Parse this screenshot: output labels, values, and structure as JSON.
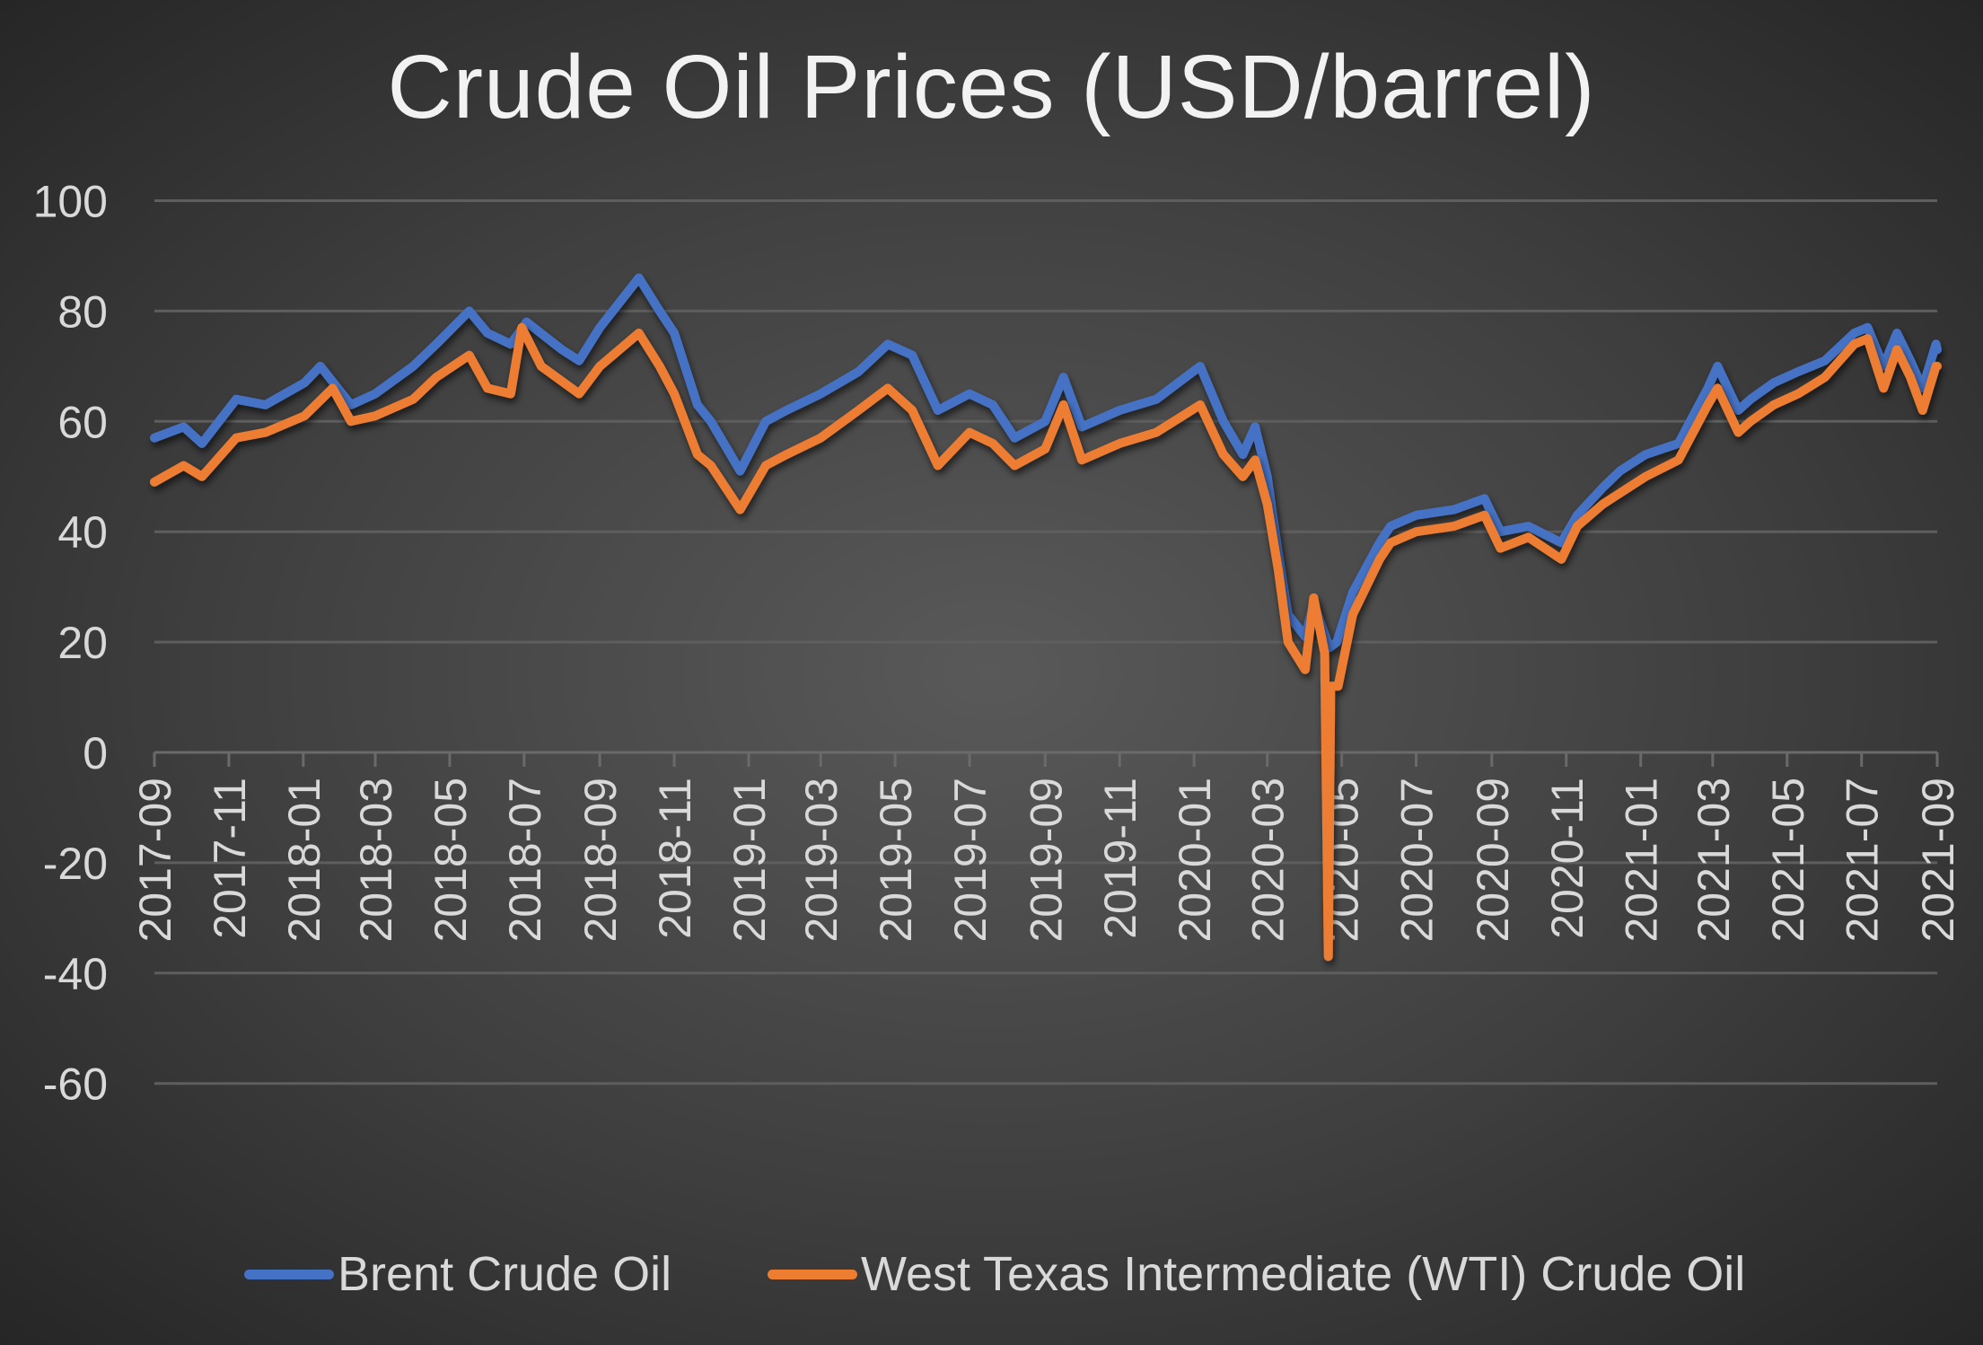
{
  "chart_data": {
    "type": "line",
    "title": "Crude Oil Prices (USD/barrel)",
    "xlabel": "",
    "ylabel": "",
    "ylim": [
      -60,
      100
    ],
    "yticks": [
      100,
      80,
      60,
      40,
      20,
      0,
      -20,
      -40,
      -60
    ],
    "xlim": [
      "2017-09-01",
      "2021-09-01"
    ],
    "xticks": [
      "2017-09",
      "2017-11",
      "2018-01",
      "2018-03",
      "2018-05",
      "2018-07",
      "2018-09",
      "2018-11",
      "2019-01",
      "2019-03",
      "2019-05",
      "2019-07",
      "2019-09",
      "2019-11",
      "2020-01",
      "2020-03",
      "2020-05",
      "2020-07",
      "2020-09",
      "2020-11",
      "2021-01",
      "2021-03",
      "2021-05",
      "2021-07",
      "2021-09"
    ],
    "grid": true,
    "legend": "bottom",
    "series": [
      {
        "name": "Brent Crude Oil",
        "color": "#4472c4",
        "points": [
          [
            "2017-09-01",
            57
          ],
          [
            "2017-09-25",
            59
          ],
          [
            "2017-10-10",
            56
          ],
          [
            "2017-11-07",
            64
          ],
          [
            "2017-12-01",
            63
          ],
          [
            "2018-01-02",
            67
          ],
          [
            "2018-01-15",
            70
          ],
          [
            "2018-02-09",
            63
          ],
          [
            "2018-03-01",
            65
          ],
          [
            "2018-04-01",
            70
          ],
          [
            "2018-04-20",
            74
          ],
          [
            "2018-05-17",
            80
          ],
          [
            "2018-06-01",
            76
          ],
          [
            "2018-06-20",
            74
          ],
          [
            "2018-07-03",
            78
          ],
          [
            "2018-08-01",
            73
          ],
          [
            "2018-08-15",
            71
          ],
          [
            "2018-09-01",
            77
          ],
          [
            "2018-10-03",
            86
          ],
          [
            "2018-10-20",
            80
          ],
          [
            "2018-11-01",
            76
          ],
          [
            "2018-11-20",
            63
          ],
          [
            "2018-12-01",
            60
          ],
          [
            "2018-12-25",
            51
          ],
          [
            "2019-01-15",
            60
          ],
          [
            "2019-02-01",
            62
          ],
          [
            "2019-03-01",
            65
          ],
          [
            "2019-04-01",
            69
          ],
          [
            "2019-04-25",
            74
          ],
          [
            "2019-05-15",
            72
          ],
          [
            "2019-06-05",
            62
          ],
          [
            "2019-07-01",
            65
          ],
          [
            "2019-07-20",
            63
          ],
          [
            "2019-08-07",
            57
          ],
          [
            "2019-09-01",
            60
          ],
          [
            "2019-09-16",
            68
          ],
          [
            "2019-10-01",
            59
          ],
          [
            "2019-11-01",
            62
          ],
          [
            "2019-12-01",
            64
          ],
          [
            "2020-01-06",
            70
          ],
          [
            "2020-01-25",
            60
          ],
          [
            "2020-02-10",
            54
          ],
          [
            "2020-02-20",
            59
          ],
          [
            "2020-03-01",
            50
          ],
          [
            "2020-03-10",
            36
          ],
          [
            "2020-03-18",
            25
          ],
          [
            "2020-04-01",
            21
          ],
          [
            "2020-04-08",
            27
          ],
          [
            "2020-04-21",
            19
          ],
          [
            "2020-04-27",
            20
          ],
          [
            "2020-05-10",
            29
          ],
          [
            "2020-06-01",
            38
          ],
          [
            "2020-06-10",
            41
          ],
          [
            "2020-07-01",
            43
          ],
          [
            "2020-08-01",
            44
          ],
          [
            "2020-08-26",
            46
          ],
          [
            "2020-09-08",
            40
          ],
          [
            "2020-10-01",
            41
          ],
          [
            "2020-10-28",
            38
          ],
          [
            "2020-11-10",
            43
          ],
          [
            "2020-12-01",
            48
          ],
          [
            "2020-12-15",
            51
          ],
          [
            "2021-01-05",
            54
          ],
          [
            "2021-02-01",
            56
          ],
          [
            "2021-02-25",
            66
          ],
          [
            "2021-03-05",
            70
          ],
          [
            "2021-03-22",
            62
          ],
          [
            "2021-04-01",
            64
          ],
          [
            "2021-04-20",
            67
          ],
          [
            "2021-05-10",
            69
          ],
          [
            "2021-06-01",
            71
          ],
          [
            "2021-06-25",
            76
          ],
          [
            "2021-07-06",
            77
          ],
          [
            "2021-07-19",
            70
          ],
          [
            "2021-07-30",
            76
          ],
          [
            "2021-08-10",
            71
          ],
          [
            "2021-08-20",
            66
          ],
          [
            "2021-08-31",
            74
          ],
          [
            "2021-09-01",
            73
          ]
        ]
      },
      {
        "name": "West Texas Intermediate (WTI) Crude Oil",
        "color": "#ed7d31",
        "points": [
          [
            "2017-09-01",
            49
          ],
          [
            "2017-09-25",
            52
          ],
          [
            "2017-10-10",
            50
          ],
          [
            "2017-11-07",
            57
          ],
          [
            "2017-12-01",
            58
          ],
          [
            "2018-01-02",
            61
          ],
          [
            "2018-01-25",
            66
          ],
          [
            "2018-02-09",
            60
          ],
          [
            "2018-03-01",
            61
          ],
          [
            "2018-04-01",
            64
          ],
          [
            "2018-04-20",
            68
          ],
          [
            "2018-05-17",
            72
          ],
          [
            "2018-06-01",
            66
          ],
          [
            "2018-06-20",
            65
          ],
          [
            "2018-06-29",
            77
          ],
          [
            "2018-07-15",
            70
          ],
          [
            "2018-08-15",
            65
          ],
          [
            "2018-09-01",
            70
          ],
          [
            "2018-10-03",
            76
          ],
          [
            "2018-10-20",
            70
          ],
          [
            "2018-11-01",
            65
          ],
          [
            "2018-11-20",
            54
          ],
          [
            "2018-12-01",
            52
          ],
          [
            "2018-12-25",
            44
          ],
          [
            "2019-01-15",
            52
          ],
          [
            "2019-02-01",
            54
          ],
          [
            "2019-03-01",
            57
          ],
          [
            "2019-04-01",
            62
          ],
          [
            "2019-04-25",
            66
          ],
          [
            "2019-05-15",
            62
          ],
          [
            "2019-06-05",
            52
          ],
          [
            "2019-07-01",
            58
          ],
          [
            "2019-07-20",
            56
          ],
          [
            "2019-08-07",
            52
          ],
          [
            "2019-09-01",
            55
          ],
          [
            "2019-09-16",
            63
          ],
          [
            "2019-10-01",
            53
          ],
          [
            "2019-11-01",
            56
          ],
          [
            "2019-12-01",
            58
          ],
          [
            "2020-01-06",
            63
          ],
          [
            "2020-01-25",
            54
          ],
          [
            "2020-02-10",
            50
          ],
          [
            "2020-02-20",
            53
          ],
          [
            "2020-03-01",
            45
          ],
          [
            "2020-03-10",
            33
          ],
          [
            "2020-03-18",
            20
          ],
          [
            "2020-04-01",
            15
          ],
          [
            "2020-04-08",
            28
          ],
          [
            "2020-04-17",
            18
          ],
          [
            "2020-04-20",
            -37
          ],
          [
            "2020-04-22",
            12
          ],
          [
            "2020-04-28",
            12
          ],
          [
            "2020-05-10",
            25
          ],
          [
            "2020-06-01",
            35
          ],
          [
            "2020-06-10",
            38
          ],
          [
            "2020-07-01",
            40
          ],
          [
            "2020-08-01",
            41
          ],
          [
            "2020-08-26",
            43
          ],
          [
            "2020-09-08",
            37
          ],
          [
            "2020-10-01",
            39
          ],
          [
            "2020-10-28",
            35
          ],
          [
            "2020-11-10",
            41
          ],
          [
            "2020-12-01",
            45
          ],
          [
            "2020-12-15",
            47
          ],
          [
            "2021-01-05",
            50
          ],
          [
            "2021-02-01",
            53
          ],
          [
            "2021-02-25",
            63
          ],
          [
            "2021-03-05",
            66
          ],
          [
            "2021-03-22",
            58
          ],
          [
            "2021-04-01",
            60
          ],
          [
            "2021-04-20",
            63
          ],
          [
            "2021-05-10",
            65
          ],
          [
            "2021-06-01",
            68
          ],
          [
            "2021-06-25",
            74
          ],
          [
            "2021-07-06",
            75
          ],
          [
            "2021-07-19",
            66
          ],
          [
            "2021-07-30",
            73
          ],
          [
            "2021-08-10",
            68
          ],
          [
            "2021-08-20",
            62
          ],
          [
            "2021-08-31",
            70
          ],
          [
            "2021-09-01",
            70
          ]
        ]
      }
    ]
  }
}
